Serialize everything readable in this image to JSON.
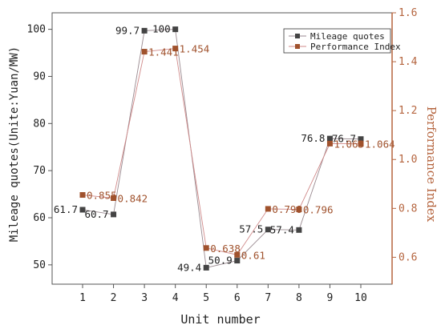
{
  "chart_data": {
    "type": "line",
    "xlabel": "Unit number",
    "ylabel_left": "Mileage quotes(Unite:Yuan/MW)",
    "ylabel_right": "Performance Index",
    "categories": [
      "1",
      "2",
      "3",
      "4",
      "5",
      "6",
      "7",
      "8",
      "9",
      "10"
    ],
    "y_left_ticks": [
      "50",
      "60",
      "70",
      "80",
      "90",
      "100"
    ],
    "y_right_ticks": [
      "0.6",
      "0.8",
      "1.0",
      "1.2",
      "1.4",
      "1.6"
    ],
    "ylim_left": [
      45.9,
      103.5
    ],
    "ylim_right": [
      0.49,
      1.6
    ],
    "legend_position": "top-right",
    "series": [
      {
        "name": "Mileage quotes",
        "axis": "left",
        "color": "#444444",
        "values": [
          61.7,
          60.7,
          99.7,
          100,
          49.4,
          50.9,
          57.5,
          57.4,
          76.8,
          76.7
        ],
        "labels": [
          "61.7",
          "60.7",
          "99.7",
          "100",
          "49.4",
          "50.9",
          "57.5",
          "57.4",
          "76.8",
          "76.7"
        ]
      },
      {
        "name": "Performance Index",
        "axis": "right",
        "color": "#a0522d",
        "values": [
          0.855,
          0.842,
          1.441,
          1.454,
          0.638,
          0.61,
          0.798,
          0.796,
          1.065,
          1.064
        ],
        "labels": [
          "0.855",
          "0.842",
          "1.441",
          "1.454",
          "0.638",
          "0.61",
          "0.798",
          "0.796",
          "1.065",
          "1.064"
        ]
      }
    ]
  }
}
